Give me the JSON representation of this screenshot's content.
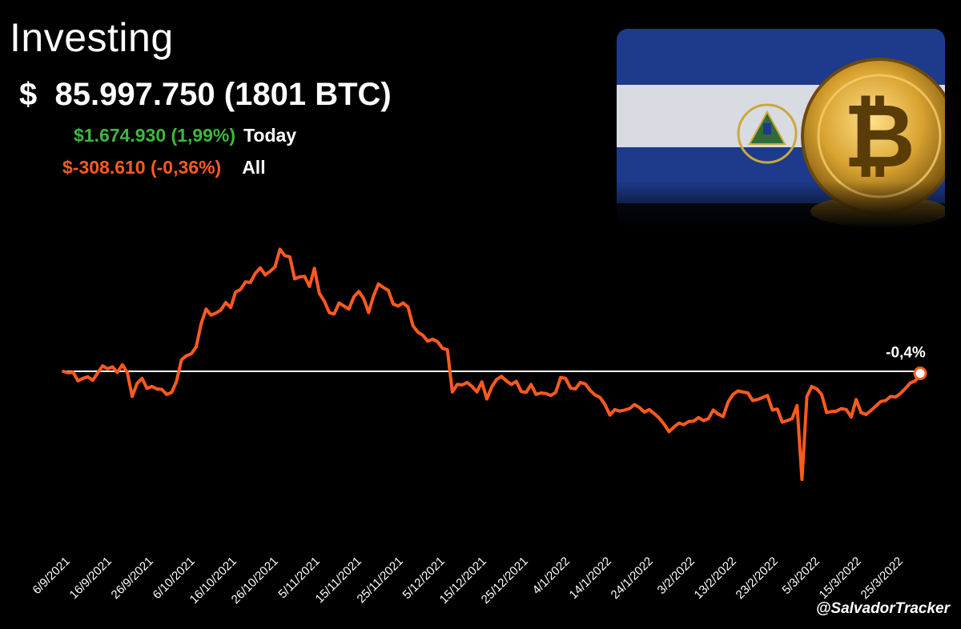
{
  "header": {
    "title": "Investing",
    "total_value": "$  85.997.750 (1801 BTC)",
    "today_change": "$1.674.930 (1,99%)",
    "today_label": "Today",
    "all_change": "$-308.610 (-0,36%)",
    "all_label": "All"
  },
  "watermark": "@SalvadorTracker",
  "colors": {
    "background": "#000000",
    "line": "#ff5a1f",
    "positive": "#3db83d",
    "negative": "#ff5a1f",
    "baseline": "#ffffff"
  },
  "chart_data": {
    "type": "line",
    "title": "Investing",
    "xlabel": "",
    "ylabel": "",
    "ylim": [
      -32,
      43
    ],
    "grid": false,
    "baseline": 0,
    "end_annotation": "-0,4%",
    "x_tick_labels": [
      "6/9/2021",
      "16/9/2021",
      "26/9/2021",
      "6/10/2021",
      "16/10/2021",
      "26/10/2021",
      "5/11/2021",
      "15/11/2021",
      "25/11/2021",
      "5/12/2021",
      "15/12/2021",
      "25/12/2021",
      "4/1/2022",
      "14/1/2022",
      "24/1/2022",
      "3/2/2022",
      "13/2/2022",
      "23/2/2022",
      "5/3/2022",
      "15/3/2022",
      "25/3/2022"
    ],
    "series": [
      {
        "values": [
          0.0,
          -0.3,
          -0.2,
          -1.9,
          -1.4,
          -1.1,
          -1.8,
          -0.3,
          1.1,
          0.5,
          0.9,
          -0.2,
          1.3,
          -0.2,
          -5.0,
          -2.4,
          -1.4,
          -3.4,
          -3.0,
          -3.5,
          -3.6,
          -4.6,
          -4.2,
          -2.0,
          2.3,
          3.1,
          3.5,
          4.9,
          9.5,
          12.4,
          11.2,
          11.6,
          12.2,
          13.7,
          12.7,
          15.8,
          16.3,
          17.8,
          17.7,
          19.5,
          20.6,
          19.2,
          19.9,
          20.8,
          24.3,
          23.0,
          22.8,
          18.4,
          18.8,
          18.9,
          16.9,
          20.5,
          15.5,
          14.0,
          11.7,
          11.4,
          13.6,
          13.0,
          12.4,
          14.8,
          15.9,
          14.5,
          11.7,
          15.0,
          17.4,
          16.7,
          16.1,
          13.4,
          13.0,
          13.6,
          12.8,
          9.1,
          7.8,
          7.2,
          6.0,
          6.4,
          5.9,
          4.6,
          4.3,
          -4.1,
          -2.6,
          -2.7,
          -2.2,
          -3.0,
          -4.1,
          -2.1,
          -5.5,
          -3.1,
          -1.6,
          -1.0,
          -1.9,
          -2.6,
          -2.0,
          -4.0,
          -4.2,
          -2.6,
          -4.6,
          -4.3,
          -4.4,
          -4.8,
          -4.2,
          -1.2,
          -1.4,
          -3.3,
          -3.5,
          -2.2,
          -2.5,
          -3.8,
          -4.7,
          -5.2,
          -6.6,
          -8.7,
          -7.6,
          -7.9,
          -7.7,
          -7.4,
          -6.6,
          -7.2,
          -8.1,
          -7.6,
          -8.4,
          -9.3,
          -10.5,
          -12.0,
          -11.1,
          -10.3,
          -10.6,
          -10.0,
          -9.9,
          -9.2,
          -9.8,
          -9.4,
          -7.7,
          -8.5,
          -9.0,
          -6.1,
          -4.6,
          -3.9,
          -4.1,
          -4.3,
          -5.8,
          -5.6,
          -5.2,
          -4.8,
          -7.7,
          -7.5,
          -10.1,
          -9.8,
          -9.4,
          -6.8,
          -21.5,
          -5.0,
          -3.0,
          -3.5,
          -4.6,
          -8.2,
          -8.0,
          -7.9,
          -7.4,
          -7.6,
          -9.1,
          -5.6,
          -8.2,
          -8.6,
          -7.8,
          -6.9,
          -6.0,
          -5.8,
          -5.0,
          -5.1,
          -4.4,
          -3.4,
          -2.3,
          -1.9,
          -0.4
        ]
      }
    ]
  },
  "hero_image": {
    "description_icon": "el-salvador-flag-with-bitcoin-coin",
    "flag_colors": [
      "#1d3a8c",
      "#d9dbe2",
      "#1d3a8c"
    ],
    "coin_color": "#d9a330"
  }
}
